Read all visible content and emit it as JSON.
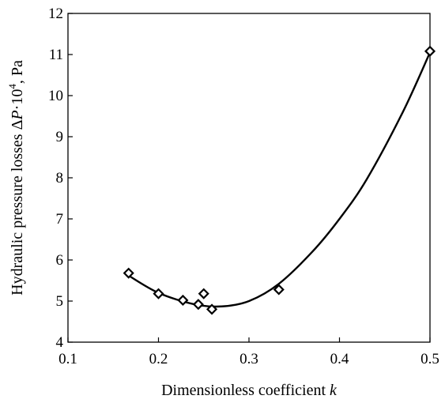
{
  "chart_data": {
    "type": "scatter",
    "x_axis": {
      "label_main": "Dimensionless  coefficient  ",
      "label_var": "k",
      "range": [
        0.1,
        0.5
      ],
      "ticks": [
        "0.1",
        "0.2",
        "0.3",
        "0.4",
        "0.5"
      ]
    },
    "y_axis": {
      "label_prefix": "Hydraulic  pressure  losses  Δ",
      "label_var": "P",
      "label_mid": "·10",
      "label_exp": "4",
      "label_suffix": ", Pa",
      "range": [
        4,
        12
      ],
      "ticks": [
        "4",
        "5",
        "6",
        "7",
        "8",
        "9",
        "10",
        "11",
        "12"
      ]
    },
    "series": [
      {
        "marker": "diamond",
        "points": [
          {
            "x": 0.167,
            "y": 5.68
          },
          {
            "x": 0.2,
            "y": 5.18
          },
          {
            "x": 0.227,
            "y": 5.02
          },
          {
            "x": 0.244,
            "y": 4.92
          },
          {
            "x": 0.25,
            "y": 5.18
          },
          {
            "x": 0.259,
            "y": 4.8
          },
          {
            "x": 0.333,
            "y": 5.28
          },
          {
            "x": 0.5,
            "y": 11.08
          }
        ]
      }
    ],
    "trendline": {
      "type": "polynomial",
      "points": [
        {
          "x": 0.167,
          "y": 5.62
        },
        {
          "x": 0.2,
          "y": 5.2
        },
        {
          "x": 0.24,
          "y": 4.92
        },
        {
          "x": 0.27,
          "y": 4.87
        },
        {
          "x": 0.3,
          "y": 5.0
        },
        {
          "x": 0.333,
          "y": 5.42
        },
        {
          "x": 0.37,
          "y": 6.2
        },
        {
          "x": 0.4,
          "y": 7.0
        },
        {
          "x": 0.43,
          "y": 7.96
        },
        {
          "x": 0.47,
          "y": 9.6
        },
        {
          "x": 0.5,
          "y": 11.05
        }
      ]
    },
    "grid": false,
    "legend": "none"
  }
}
